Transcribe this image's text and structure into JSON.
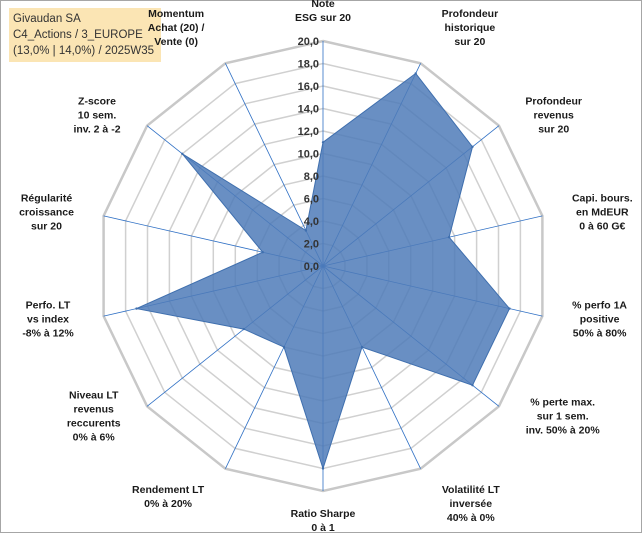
{
  "title_box": {
    "line1": "Givaudan SA",
    "line2": "C4_Actions / 3_EUROPE",
    "line3": "(13,0% | 14,0%) / 2025W35"
  },
  "chart_data": {
    "type": "radar",
    "rmax": 20,
    "tick_step": 2,
    "ticks": [
      "0,0",
      "2,0",
      "4,0",
      "6,0",
      "8,0",
      "10,0",
      "12,0",
      "14,0",
      "16,0",
      "18,0",
      "20,0"
    ],
    "grid_circles": 10,
    "axes": [
      {
        "label": [
          "Note",
          "ESG sur 20"
        ],
        "value": 11.0
      },
      {
        "label": [
          "Profondeur",
          "historique",
          "sur 20"
        ],
        "value": 19.0
      },
      {
        "label": [
          "Profondeur",
          "revenus",
          "sur 20"
        ],
        "value": 17.0
      },
      {
        "label": [
          "Capi. bours.",
          "en MdEUR",
          "0 à 60 G€"
        ],
        "value": 11.5
      },
      {
        "label": [
          "% perfo 1A",
          "positive",
          "50% à 80%"
        ],
        "value": 17.0
      },
      {
        "label": [
          "% perte max.",
          "sur 1 sem.",
          "inv. 50% à 20%"
        ],
        "value": 17.0
      },
      {
        "label": [
          "Volatilité LT",
          "inversée",
          "40% à 0%"
        ],
        "value": 8.0
      },
      {
        "label": [
          "Ratio Sharpe",
          "0 à 1"
        ],
        "value": 18.0
      },
      {
        "label": [
          "Rendement LT",
          "0% à 20%"
        ],
        "value": 8.0
      },
      {
        "label": [
          "Niveau LT",
          "revenus",
          "reccurents",
          "0% à 6%"
        ],
        "value": 9.0
      },
      {
        "label": [
          "Perfo. LT",
          "vs index",
          "-8% à 12%"
        ],
        "value": 17.0
      },
      {
        "label": [
          "Régularité",
          "croissance",
          "sur 20"
        ],
        "value": 5.5
      },
      {
        "label": [
          "Z-score",
          "10 sem.",
          "inv. 2 à -2"
        ],
        "value": 16.0
      },
      {
        "label": [
          "Momentum",
          "Achat (20) /",
          "Vente (0)"
        ],
        "value": 3.5
      }
    ],
    "colors": {
      "fill": "#4f7bb8",
      "stroke": "#3f6fae",
      "grid": "#d0d0d0",
      "spoke": "#2e6fc4",
      "outer": "#c8c8c8"
    }
  }
}
